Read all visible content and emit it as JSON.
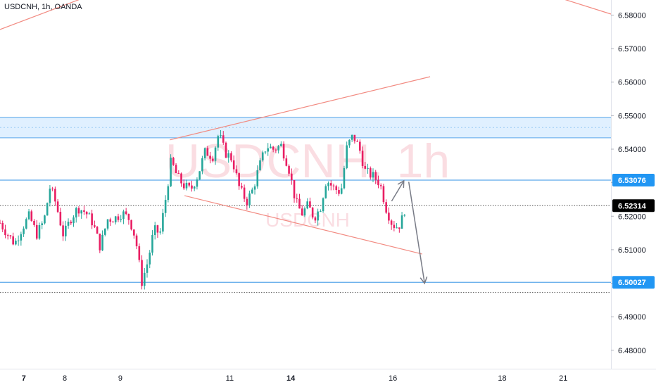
{
  "header": {
    "symbol_line": "USDCNH, 1h, OANDA"
  },
  "watermark": {
    "main": "USDCNH, 1h",
    "sub": "USDCNH"
  },
  "colors": {
    "up": "#26a69a",
    "down": "#ef5350",
    "up_candle": "#26a69a",
    "down_candle": "#e91e63",
    "zone_fill": "#d6ebff",
    "zone_line": "#5aa7ea",
    "level_line": "#5aa7ea",
    "trend_line": "#f28b82",
    "arrow": "#787b86",
    "current_price_bg": "#000000",
    "level_tag_bg": "#2196f3"
  },
  "chart_data": {
    "type": "candlestick",
    "symbol": "USDCNH",
    "interval": "1h",
    "source": "OANDA",
    "y_axis": {
      "ylim": [
        6.4745,
        6.5845
      ],
      "ticks": [
        "6.58000",
        "6.57000",
        "6.56000",
        "6.55000",
        "6.54000",
        "6.53000",
        "6.52000",
        "6.51000",
        "6.50000",
        "6.49000",
        "6.48000"
      ]
    },
    "x_axis": {
      "ticks": [
        {
          "label": "7",
          "bold": true,
          "pos": 0.039
        },
        {
          "label": "8",
          "bold": false,
          "pos": 0.106
        },
        {
          "label": "9",
          "bold": false,
          "pos": 0.197
        },
        {
          "label": "11",
          "bold": false,
          "pos": 0.376
        },
        {
          "label": "14",
          "bold": true,
          "pos": 0.476
        },
        {
          "label": "16",
          "bold": false,
          "pos": 0.643
        },
        {
          "label": "18",
          "bold": false,
          "pos": 0.822
        },
        {
          "label": "21",
          "bold": false,
          "pos": 0.922
        }
      ]
    },
    "price_tags": [
      {
        "label": "6.53076",
        "value": 6.53076,
        "kind": "level"
      },
      {
        "label": "6.52314",
        "value": 6.52314,
        "kind": "current"
      },
      {
        "label": "6.50027",
        "value": 6.50027,
        "kind": "level"
      }
    ],
    "zone": {
      "top": 6.54952,
      "bottom": 6.54338
    },
    "levels": [
      6.53076,
      6.50027
    ],
    "dotted_levels": [
      6.52314,
      6.49725
    ],
    "trendlines": [
      {
        "x1": 0.0,
        "y1": 6.5757,
        "x2": 0.135,
        "y2": 6.585
      },
      {
        "x1": 0.92,
        "y1": 6.5849,
        "x2": 1.0,
        "y2": 6.5803
      },
      {
        "x1": 0.278,
        "y1": 6.54277,
        "x2": 0.704,
        "y2": 6.56162
      },
      {
        "x1": 0.302,
        "y1": 6.52612,
        "x2": 0.691,
        "y2": 6.50871
      }
    ],
    "arrows": [
      {
        "from": [
          0.641,
          6.52449
        ],
        "to": [
          0.661,
          6.53056
        ]
      },
      {
        "from": [
          0.669,
          6.53026
        ],
        "to": [
          0.695,
          6.49997
        ]
      }
    ],
    "close_series": [
      {
        "t": 0.0,
        "c": 6.518
      },
      {
        "t": 0.012,
        "c": 6.5148
      },
      {
        "t": 0.024,
        "c": 6.5118
      },
      {
        "t": 0.036,
        "c": 6.5165
      },
      {
        "t": 0.048,
        "c": 6.5201
      },
      {
        "t": 0.06,
        "c": 6.5146
      },
      {
        "t": 0.072,
        "c": 6.5186
      },
      {
        "t": 0.082,
        "c": 6.5288
      },
      {
        "t": 0.092,
        "c": 6.5235
      },
      {
        "t": 0.104,
        "c": 6.5141
      },
      {
        "t": 0.116,
        "c": 6.5194
      },
      {
        "t": 0.128,
        "c": 6.5225
      },
      {
        "t": 0.14,
        "c": 6.5212
      },
      {
        "t": 0.152,
        "c": 6.518
      },
      {
        "t": 0.164,
        "c": 6.5108
      },
      {
        "t": 0.176,
        "c": 6.5191
      },
      {
        "t": 0.188,
        "c": 6.5194
      },
      {
        "t": 0.2,
        "c": 6.521
      },
      {
        "t": 0.212,
        "c": 6.5191
      },
      {
        "t": 0.222,
        "c": 6.5133
      },
      {
        "t": 0.232,
        "c": 6.5003
      },
      {
        "t": 0.242,
        "c": 6.5065
      },
      {
        "t": 0.252,
        "c": 6.5159
      },
      {
        "t": 0.262,
        "c": 6.5149
      },
      {
        "t": 0.272,
        "c": 6.5263
      },
      {
        "t": 0.28,
        "c": 6.5365
      },
      {
        "t": 0.29,
        "c": 6.5319
      },
      {
        "t": 0.3,
        "c": 6.5293
      },
      {
        "t": 0.312,
        "c": 6.5278
      },
      {
        "t": 0.324,
        "c": 6.5323
      },
      {
        "t": 0.336,
        "c": 6.5394
      },
      {
        "t": 0.348,
        "c": 6.5378
      },
      {
        "t": 0.358,
        "c": 6.5447
      },
      {
        "t": 0.368,
        "c": 6.5391
      },
      {
        "t": 0.38,
        "c": 6.5371
      },
      {
        "t": 0.392,
        "c": 6.5282
      },
      {
        "t": 0.404,
        "c": 6.5244
      },
      {
        "t": 0.414,
        "c": 6.528
      },
      {
        "t": 0.424,
        "c": 6.5346
      },
      {
        "t": 0.436,
        "c": 6.541
      },
      {
        "t": 0.448,
        "c": 6.5399
      },
      {
        "t": 0.46,
        "c": 6.5411
      },
      {
        "t": 0.472,
        "c": 6.5349
      },
      {
        "t": 0.484,
        "c": 6.5243
      },
      {
        "t": 0.494,
        "c": 6.5207
      },
      {
        "t": 0.504,
        "c": 6.5232
      },
      {
        "t": 0.514,
        "c": 6.5196
      },
      {
        "t": 0.524,
        "c": 6.5223
      },
      {
        "t": 0.534,
        "c": 6.5309
      },
      {
        "t": 0.546,
        "c": 6.5284
      },
      {
        "t": 0.558,
        "c": 6.5271
      },
      {
        "t": 0.568,
        "c": 6.5408
      },
      {
        "t": 0.578,
        "c": 6.544
      },
      {
        "t": 0.588,
        "c": 6.5403
      },
      {
        "t": 0.598,
        "c": 6.5333
      },
      {
        "t": 0.61,
        "c": 6.532
      },
      {
        "t": 0.622,
        "c": 6.5298
      },
      {
        "t": 0.632,
        "c": 6.5224
      },
      {
        "t": 0.642,
        "c": 6.5176
      },
      {
        "t": 0.65,
        "c": 6.5169
      },
      {
        "t": 0.656,
        "c": 6.5178
      },
      {
        "t": 0.664,
        "c": 6.5231
      }
    ]
  }
}
